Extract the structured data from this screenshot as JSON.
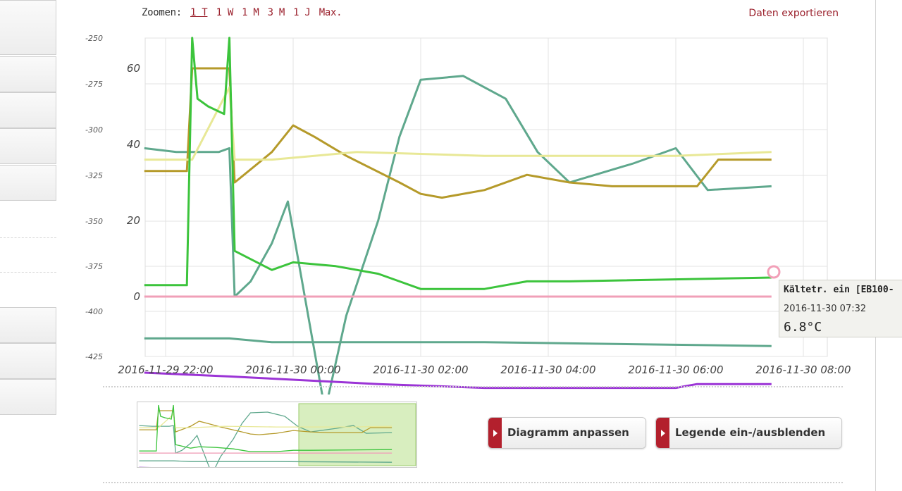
{
  "zoom": {
    "label": "Zoomen:",
    "options": [
      "1 T",
      "1 W",
      "1 M",
      "3 M",
      "1 J",
      "Max."
    ],
    "active": "1 T"
  },
  "export_label": "Daten exportieren",
  "chart_data": {
    "type": "line",
    "y_left": {
      "ticks": [
        "-250",
        "-275",
        "-300",
        "-325",
        "-350",
        "-375",
        "-400",
        "-425"
      ],
      "range": [
        -425,
        -250
      ]
    },
    "y_right": {
      "ticks": [
        "60",
        "40",
        "20",
        "0"
      ],
      "range": [
        -16,
        80
      ]
    },
    "x": {
      "ticks": [
        "2016-11-29 22:00",
        "2016-11-30 00:00",
        "2016-11-30 02:00",
        "2016-11-30 04:00",
        "2016-11-30 06:00",
        "2016-11-30 08:00"
      ]
    },
    "grid": true,
    "series": [
      {
        "color": "#5fa88d",
        "points": [
          [
            "21:40",
            39
          ],
          [
            "22:10",
            38
          ],
          [
            "22:50",
            38
          ],
          [
            "23:00",
            39
          ],
          [
            "23:05",
            0
          ],
          [
            "23:20",
            4
          ],
          [
            "23:40",
            14
          ],
          [
            "23:55",
            25
          ],
          [
            "00:30",
            -30
          ],
          [
            "00:50",
            -5
          ],
          [
            "01:20",
            20
          ],
          [
            "01:40",
            42
          ],
          [
            "02:00",
            57
          ],
          [
            "02:40",
            58
          ],
          [
            "03:20",
            52
          ],
          [
            "03:50",
            38
          ],
          [
            "04:20",
            30
          ],
          [
            "05:20",
            35
          ],
          [
            "06:00",
            39
          ],
          [
            "06:30",
            28
          ],
          [
            "07:30",
            29
          ]
        ]
      },
      {
        "color": "#b59a2a",
        "points": [
          [
            "21:40",
            33
          ],
          [
            "22:20",
            33
          ],
          [
            "22:25",
            60
          ],
          [
            "23:00",
            60
          ],
          [
            "23:05",
            30
          ],
          [
            "23:40",
            38
          ],
          [
            "24:00",
            45
          ],
          [
            "00:20",
            42
          ],
          [
            "00:50",
            37
          ],
          [
            "01:40",
            30
          ],
          [
            "02:00",
            27
          ],
          [
            "02:20",
            26
          ],
          [
            "03:00",
            28
          ],
          [
            "03:40",
            32
          ],
          [
            "04:20",
            30
          ],
          [
            "05:00",
            29
          ],
          [
            "06:20",
            29
          ],
          [
            "06:40",
            36
          ],
          [
            "07:30",
            36
          ]
        ]
      },
      {
        "color": "#e8e896",
        "points": [
          [
            "21:40",
            36
          ],
          [
            "22:25",
            36
          ],
          [
            "23:00",
            55
          ],
          [
            "23:05",
            36
          ],
          [
            "23:40",
            36
          ],
          [
            "00:20",
            37
          ],
          [
            "01:00",
            38
          ],
          [
            "03:00",
            37
          ],
          [
            "06:00",
            37
          ],
          [
            "07:30",
            38
          ]
        ]
      },
      {
        "color": "#3cc43c",
        "points": [
          [
            "21:40",
            3
          ],
          [
            "22:20",
            3
          ],
          [
            "22:25",
            68
          ],
          [
            "22:30",
            52
          ],
          [
            "22:40",
            50
          ],
          [
            "22:55",
            48
          ],
          [
            "23:00",
            68
          ],
          [
            "23:05",
            12
          ],
          [
            "23:40",
            7
          ],
          [
            "24:00",
            9
          ],
          [
            "00:40",
            8
          ],
          [
            "01:20",
            6
          ],
          [
            "01:40",
            4
          ],
          [
            "02:00",
            2
          ],
          [
            "03:00",
            2
          ],
          [
            "03:40",
            4
          ],
          [
            "04:20",
            4
          ],
          [
            "07:30",
            5
          ]
        ]
      },
      {
        "color": "#f0a0b8",
        "points": [
          [
            "21:40",
            0
          ],
          [
            "07:30",
            0
          ]
        ]
      },
      {
        "color": "#5fa88d",
        "points": [
          [
            "21:40",
            -11
          ],
          [
            "22:00",
            -11
          ],
          [
            "23:00",
            -11
          ],
          [
            "23:40",
            -12
          ],
          [
            "01:20",
            -12
          ],
          [
            "03:00",
            -12
          ],
          [
            "07:30",
            -13
          ]
        ]
      },
      {
        "color": "#9b34d6",
        "points": [
          [
            "21:40",
            -20
          ],
          [
            "23:00",
            -21
          ],
          [
            "01:20",
            -23
          ],
          [
            "03:00",
            -24
          ],
          [
            "06:00",
            -24
          ],
          [
            "06:20",
            -23
          ],
          [
            "07:30",
            -23
          ]
        ]
      }
    ]
  },
  "tooltip": {
    "title": "Kältetr. ein [EB100-",
    "time": "2016-11-30 07:32",
    "value": "6.8°C"
  },
  "buttons": {
    "diagram": "Diagramm anpassen",
    "legend": "Legende ein-/ausblenden"
  }
}
